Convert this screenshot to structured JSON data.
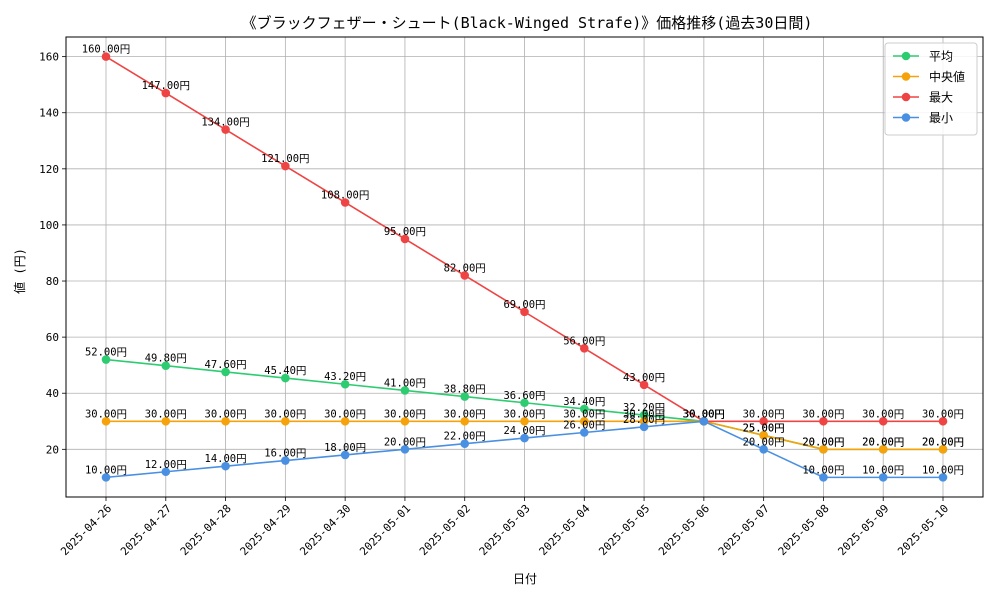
{
  "chart_data": {
    "type": "line",
    "title": "《ブラックフェザー・シュート(Black-Winged Strafe)》価格推移(過去30日間)",
    "xlabel": "日付",
    "ylabel": "値 (円)",
    "categories": [
      "2025-04-26",
      "2025-04-27",
      "2025-04-28",
      "2025-04-29",
      "2025-04-30",
      "2025-05-01",
      "2025-05-02",
      "2025-05-03",
      "2025-05-04",
      "2025-05-05",
      "2025-05-06",
      "2025-05-07",
      "2025-05-08",
      "2025-05-09",
      "2025-05-10"
    ],
    "ylim": [
      3,
      167
    ],
    "yticks": [
      20,
      40,
      60,
      80,
      100,
      120,
      140,
      160
    ],
    "grid": true,
    "legend_position": "top-right",
    "value_suffix": "円",
    "series": [
      {
        "name": "平均",
        "color": "#2ecc71",
        "values": [
          52.0,
          49.8,
          47.6,
          45.4,
          43.2,
          41.0,
          38.8,
          36.6,
          34.4,
          32.2,
          30.0,
          25.0,
          20.0,
          20.0,
          20.0
        ]
      },
      {
        "name": "中央値",
        "color": "#f5a20b",
        "values": [
          30.0,
          30.0,
          30.0,
          30.0,
          30.0,
          30.0,
          30.0,
          30.0,
          30.0,
          30.0,
          30.0,
          25.0,
          20.0,
          20.0,
          20.0
        ]
      },
      {
        "name": "最大",
        "color": "#ef4444",
        "values": [
          160.0,
          147.0,
          134.0,
          121.0,
          108.0,
          95.0,
          82.0,
          69.0,
          56.0,
          43.0,
          30.0,
          30.0,
          30.0,
          30.0,
          30.0
        ]
      },
      {
        "name": "最小",
        "color": "#4a90e2",
        "values": [
          10.0,
          12.0,
          14.0,
          16.0,
          18.0,
          20.0,
          22.0,
          24.0,
          26.0,
          28.0,
          30.0,
          20.0,
          10.0,
          10.0,
          10.0
        ]
      }
    ]
  }
}
